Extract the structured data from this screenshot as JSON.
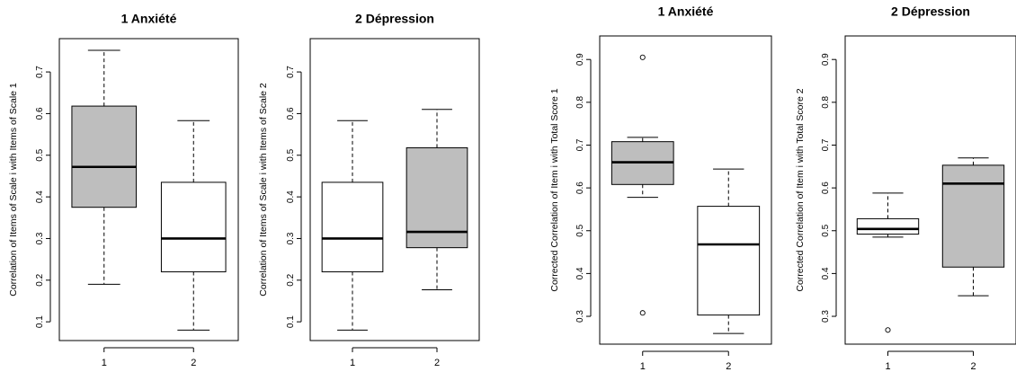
{
  "chart_data": [
    {
      "type": "boxplot",
      "title": "1 Anxiété",
      "ylabel": "Correlation of Items of Scale i with Items of Scale 1",
      "ylim": [
        0.055,
        0.78
      ],
      "yticks": [
        0.1,
        0.2,
        0.3,
        0.4,
        0.5,
        0.6,
        0.7
      ],
      "categories": [
        "1",
        "2"
      ],
      "boxes": [
        {
          "category": "1",
          "fill": "#bebebe",
          "whisker_low": 0.19,
          "q1": 0.375,
          "median": 0.472,
          "q3": 0.618,
          "whisker_high": 0.752,
          "outliers": []
        },
        {
          "category": "2",
          "fill": "#ffffff",
          "whisker_low": 0.08,
          "q1": 0.22,
          "median": 0.3,
          "q3": 0.435,
          "whisker_high": 0.583,
          "outliers": []
        }
      ]
    },
    {
      "type": "boxplot",
      "title": "2 Dépression",
      "ylabel": "Correlation of Items of Scale i with Items of Scale 2",
      "ylim": [
        0.055,
        0.78
      ],
      "yticks": [
        0.1,
        0.2,
        0.3,
        0.4,
        0.5,
        0.6,
        0.7
      ],
      "categories": [
        "1",
        "2"
      ],
      "boxes": [
        {
          "category": "1",
          "fill": "#ffffff",
          "whisker_low": 0.08,
          "q1": 0.22,
          "median": 0.3,
          "q3": 0.435,
          "whisker_high": 0.583,
          "outliers": []
        },
        {
          "category": "2",
          "fill": "#bebebe",
          "whisker_low": 0.177,
          "q1": 0.278,
          "median": 0.316,
          "q3": 0.518,
          "whisker_high": 0.61,
          "outliers": []
        }
      ]
    },
    {
      "type": "boxplot",
      "title": "1 Anxiété",
      "ylabel": "Corrected Correlation of Item i with Total Score 1",
      "ylim": [
        0.235,
        0.955
      ],
      "yticks": [
        0.3,
        0.4,
        0.5,
        0.6,
        0.7,
        0.8,
        0.9
      ],
      "categories": [
        "1",
        "2"
      ],
      "boxes": [
        {
          "category": "1",
          "fill": "#bebebe",
          "whisker_low": 0.578,
          "q1": 0.608,
          "median": 0.66,
          "q3": 0.708,
          "whisker_high": 0.718,
          "outliers": [
            0.905,
            0.308
          ]
        },
        {
          "category": "2",
          "fill": "#ffffff",
          "whisker_low": 0.26,
          "q1": 0.303,
          "median": 0.468,
          "q3": 0.557,
          "whisker_high": 0.644,
          "outliers": []
        }
      ]
    },
    {
      "type": "boxplot",
      "title": "2 Dépression",
      "ylabel": "Corrected Correlation of Item i with Total Score 2",
      "ylim": [
        0.235,
        0.955
      ],
      "yticks": [
        0.3,
        0.4,
        0.5,
        0.6,
        0.7,
        0.8,
        0.9
      ],
      "categories": [
        "1",
        "2"
      ],
      "boxes": [
        {
          "category": "1",
          "fill": "#ffffff",
          "whisker_low": 0.485,
          "q1": 0.492,
          "median": 0.504,
          "q3": 0.528,
          "whisker_high": 0.588,
          "outliers": [
            0.268
          ]
        },
        {
          "category": "2",
          "fill": "#bebebe",
          "whisker_low": 0.348,
          "q1": 0.415,
          "median": 0.61,
          "q3": 0.653,
          "whisker_high": 0.67,
          "outliers": []
        }
      ]
    }
  ]
}
